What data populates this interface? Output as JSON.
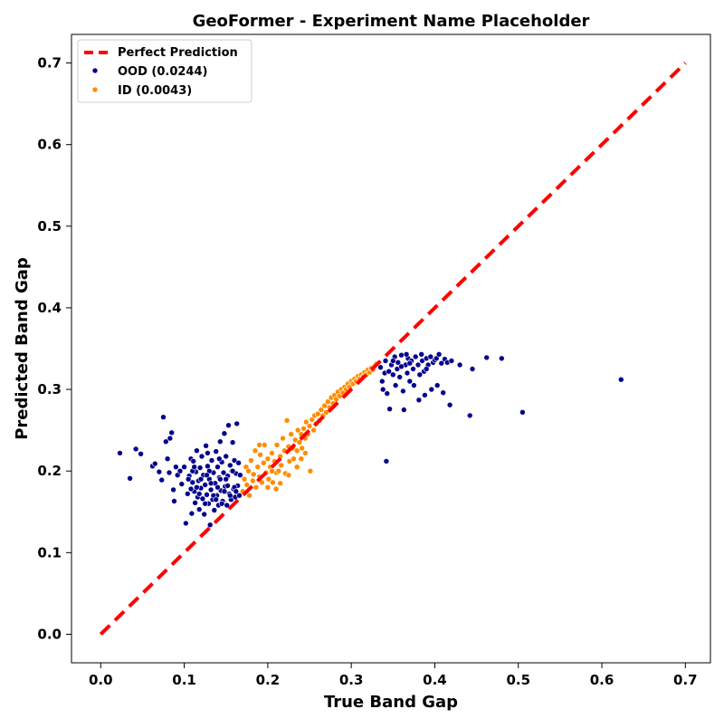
{
  "chart_data": {
    "type": "scatter",
    "title": "GeoFormer - Experiment Name Placeholder",
    "xlabel": "True Band Gap",
    "ylabel": "Predicted Band Gap",
    "xlim": [
      -0.035,
      0.73
    ],
    "ylim": [
      -0.035,
      0.735
    ],
    "xticks": [
      0.0,
      0.1,
      0.2,
      0.3,
      0.4,
      0.5,
      0.6,
      0.7
    ],
    "xtick_labels": [
      "0.0",
      "0.1",
      "0.2",
      "0.3",
      "0.4",
      "0.5",
      "0.6",
      "0.7"
    ],
    "yticks": [
      0.0,
      0.1,
      0.2,
      0.3,
      0.4,
      0.5,
      0.6,
      0.7
    ],
    "ytick_labels": [
      "0.0",
      "0.1",
      "0.2",
      "0.3",
      "0.4",
      "0.5",
      "0.6",
      "0.7"
    ],
    "grid": false,
    "legend_position": "top-left",
    "reference_line": {
      "name": "Perfect Prediction",
      "x": [
        0.0,
        0.7
      ],
      "y": [
        0.0,
        0.7
      ],
      "color": "#ff0000",
      "style": "dashed"
    },
    "series": [
      {
        "name": "OOD (0.0244)",
        "color": "#00008b",
        "points": [
          [
            0.023,
            0.222
          ],
          [
            0.035,
            0.191
          ],
          [
            0.042,
            0.227
          ],
          [
            0.048,
            0.221
          ],
          [
            0.062,
            0.206
          ],
          [
            0.065,
            0.209
          ],
          [
            0.07,
            0.199
          ],
          [
            0.073,
            0.189
          ],
          [
            0.075,
            0.266
          ],
          [
            0.078,
            0.236
          ],
          [
            0.08,
            0.215
          ],
          [
            0.082,
            0.198
          ],
          [
            0.083,
            0.24
          ],
          [
            0.085,
            0.247
          ],
          [
            0.087,
            0.177
          ],
          [
            0.088,
            0.163
          ],
          [
            0.09,
            0.205
          ],
          [
            0.092,
            0.195
          ],
          [
            0.095,
            0.2
          ],
          [
            0.097,
            0.184
          ],
          [
            0.1,
            0.205
          ],
          [
            0.102,
            0.136
          ],
          [
            0.104,
            0.172
          ],
          [
            0.106,
            0.194
          ],
          [
            0.108,
            0.215
          ],
          [
            0.109,
            0.148
          ],
          [
            0.11,
            0.186
          ],
          [
            0.111,
            0.212
          ],
          [
            0.112,
            0.175
          ],
          [
            0.113,
            0.161
          ],
          [
            0.114,
            0.199
          ],
          [
            0.115,
            0.225
          ],
          [
            0.116,
            0.168
          ],
          [
            0.117,
            0.188
          ],
          [
            0.118,
            0.153
          ],
          [
            0.119,
            0.204
          ],
          [
            0.12,
            0.179
          ],
          [
            0.121,
            0.218
          ],
          [
            0.122,
            0.166
          ],
          [
            0.123,
            0.195
          ],
          [
            0.124,
            0.147
          ],
          [
            0.125,
            0.183
          ],
          [
            0.126,
            0.231
          ],
          [
            0.127,
            0.171
          ],
          [
            0.128,
            0.206
          ],
          [
            0.129,
            0.16
          ],
          [
            0.13,
            0.19
          ],
          [
            0.131,
            0.134
          ],
          [
            0.132,
            0.177
          ],
          [
            0.133,
            0.213
          ],
          [
            0.134,
            0.165
          ],
          [
            0.135,
            0.198
          ],
          [
            0.136,
            0.152
          ],
          [
            0.137,
            0.185
          ],
          [
            0.138,
            0.224
          ],
          [
            0.139,
            0.17
          ],
          [
            0.14,
            0.205
          ],
          [
            0.141,
            0.158
          ],
          [
            0.142,
            0.192
          ],
          [
            0.143,
            0.236
          ],
          [
            0.144,
            0.176
          ],
          [
            0.145,
            0.211
          ],
          [
            0.146,
            0.163
          ],
          [
            0.147,
            0.198
          ],
          [
            0.148,
            0.246
          ],
          [
            0.149,
            0.181
          ],
          [
            0.15,
            0.218
          ],
          [
            0.151,
            0.158
          ],
          [
            0.152,
            0.194
          ],
          [
            0.153,
            0.256
          ],
          [
            0.154,
            0.172
          ],
          [
            0.155,
            0.207
          ],
          [
            0.156,
            0.165
          ],
          [
            0.157,
            0.2
          ],
          [
            0.158,
            0.235
          ],
          [
            0.159,
            0.178
          ],
          [
            0.16,
            0.213
          ],
          [
            0.161,
            0.168
          ],
          [
            0.162,
            0.197
          ],
          [
            0.163,
            0.258
          ],
          [
            0.164,
            0.182
          ],
          [
            0.165,
            0.21
          ],
          [
            0.166,
            0.17
          ],
          [
            0.167,
            0.195
          ],
          [
            0.11,
            0.2
          ],
          [
            0.12,
            0.19
          ],
          [
            0.13,
            0.2
          ],
          [
            0.14,
            0.18
          ],
          [
            0.15,
            0.19
          ],
          [
            0.16,
            0.18
          ],
          [
            0.125,
            0.16
          ],
          [
            0.135,
            0.17
          ],
          [
            0.145,
            0.16
          ],
          [
            0.155,
            0.17
          ],
          [
            0.115,
            0.18
          ],
          [
            0.105,
            0.19
          ],
          [
            0.112,
            0.205
          ],
          [
            0.128,
            0.222
          ],
          [
            0.142,
            0.215
          ],
          [
            0.158,
            0.2
          ],
          [
            0.132,
            0.185
          ],
          [
            0.148,
            0.175
          ],
          [
            0.118,
            0.172
          ],
          [
            0.138,
            0.165
          ],
          [
            0.152,
            0.182
          ],
          [
            0.162,
            0.175
          ],
          [
            0.108,
            0.178
          ],
          [
            0.127,
            0.195
          ],
          [
            0.143,
            0.19
          ],
          [
            0.335,
            0.327
          ],
          [
            0.337,
            0.31
          ],
          [
            0.338,
            0.3
          ],
          [
            0.34,
            0.32
          ],
          [
            0.341,
            0.335
          ],
          [
            0.342,
            0.212
          ],
          [
            0.343,
            0.295
          ],
          [
            0.345,
            0.322
          ],
          [
            0.346,
            0.276
          ],
          [
            0.348,
            0.33
          ],
          [
            0.35,
            0.318
          ],
          [
            0.352,
            0.34
          ],
          [
            0.353,
            0.305
          ],
          [
            0.355,
            0.325
          ],
          [
            0.356,
            0.333
          ],
          [
            0.358,
            0.315
          ],
          [
            0.36,
            0.342
          ],
          [
            0.362,
            0.298
          ],
          [
            0.363,
            0.275
          ],
          [
            0.365,
            0.33
          ],
          [
            0.367,
            0.32
          ],
          [
            0.368,
            0.338
          ],
          [
            0.37,
            0.31
          ],
          [
            0.372,
            0.335
          ],
          [
            0.374,
            0.325
          ],
          [
            0.375,
            0.305
          ],
          [
            0.377,
            0.34
          ],
          [
            0.38,
            0.33
          ],
          [
            0.381,
            0.287
          ],
          [
            0.382,
            0.318
          ],
          [
            0.385,
            0.335
          ],
          [
            0.387,
            0.322
          ],
          [
            0.388,
            0.293
          ],
          [
            0.39,
            0.338
          ],
          [
            0.392,
            0.33
          ],
          [
            0.395,
            0.34
          ],
          [
            0.396,
            0.3
          ],
          [
            0.398,
            0.333
          ],
          [
            0.4,
            0.336
          ],
          [
            0.402,
            0.338
          ],
          [
            0.403,
            0.305
          ],
          [
            0.405,
            0.343
          ],
          [
            0.408,
            0.332
          ],
          [
            0.41,
            0.296
          ],
          [
            0.412,
            0.337
          ],
          [
            0.415,
            0.333
          ],
          [
            0.418,
            0.281
          ],
          [
            0.42,
            0.335
          ],
          [
            0.43,
            0.33
          ],
          [
            0.442,
            0.268
          ],
          [
            0.445,
            0.325
          ],
          [
            0.462,
            0.339
          ],
          [
            0.48,
            0.338
          ],
          [
            0.505,
            0.272
          ],
          [
            0.623,
            0.312
          ],
          [
            0.36,
            0.328
          ],
          [
            0.37,
            0.332
          ],
          [
            0.39,
            0.325
          ],
          [
            0.35,
            0.335
          ],
          [
            0.366,
            0.343
          ],
          [
            0.384,
            0.343
          ]
        ]
      },
      {
        "name": "ID (0.0043)",
        "color": "#ff8c00",
        "points": [
          [
            0.17,
            0.175
          ],
          [
            0.172,
            0.19
          ],
          [
            0.174,
            0.205
          ],
          [
            0.175,
            0.183
          ],
          [
            0.177,
            0.2
          ],
          [
            0.178,
            0.17
          ],
          [
            0.18,
            0.213
          ],
          [
            0.182,
            0.188
          ],
          [
            0.183,
            0.196
          ],
          [
            0.185,
            0.225
          ],
          [
            0.186,
            0.18
          ],
          [
            0.188,
            0.205
          ],
          [
            0.19,
            0.193
          ],
          [
            0.191,
            0.22
          ],
          [
            0.193,
            0.186
          ],
          [
            0.195,
            0.21
          ],
          [
            0.196,
            0.232
          ],
          [
            0.198,
            0.198
          ],
          [
            0.2,
            0.215
          ],
          [
            0.201,
            0.19
          ],
          [
            0.203,
            0.205
          ],
          [
            0.205,
            0.222
          ],
          [
            0.206,
            0.186
          ],
          [
            0.208,
            0.212
          ],
          [
            0.21,
            0.198
          ],
          [
            0.211,
            0.232
          ],
          [
            0.213,
            0.2
          ],
          [
            0.215,
            0.218
          ],
          [
            0.216,
            0.207
          ],
          [
            0.218,
            0.24
          ],
          [
            0.22,
            0.225
          ],
          [
            0.221,
            0.197
          ],
          [
            0.223,
            0.262
          ],
          [
            0.225,
            0.23
          ],
          [
            0.226,
            0.212
          ],
          [
            0.228,
            0.245
          ],
          [
            0.23,
            0.228
          ],
          [
            0.231,
            0.215
          ],
          [
            0.233,
            0.238
          ],
          [
            0.235,
            0.225
          ],
          [
            0.236,
            0.25
          ],
          [
            0.238,
            0.235
          ],
          [
            0.24,
            0.245
          ],
          [
            0.241,
            0.228
          ],
          [
            0.243,
            0.252
          ],
          [
            0.245,
            0.24
          ],
          [
            0.246,
            0.26
          ],
          [
            0.248,
            0.245
          ],
          [
            0.25,
            0.255
          ],
          [
            0.251,
            0.2
          ],
          [
            0.253,
            0.263
          ],
          [
            0.255,
            0.25
          ],
          [
            0.256,
            0.268
          ],
          [
            0.258,
            0.258
          ],
          [
            0.26,
            0.27
          ],
          [
            0.262,
            0.262
          ],
          [
            0.264,
            0.275
          ],
          [
            0.266,
            0.268
          ],
          [
            0.268,
            0.28
          ],
          [
            0.27,
            0.272
          ],
          [
            0.272,
            0.285
          ],
          [
            0.274,
            0.278
          ],
          [
            0.276,
            0.29
          ],
          [
            0.278,
            0.283
          ],
          [
            0.28,
            0.293
          ],
          [
            0.282,
            0.288
          ],
          [
            0.284,
            0.297
          ],
          [
            0.286,
            0.292
          ],
          [
            0.288,
            0.3
          ],
          [
            0.29,
            0.296
          ],
          [
            0.292,
            0.303
          ],
          [
            0.294,
            0.3
          ],
          [
            0.296,
            0.307
          ],
          [
            0.298,
            0.303
          ],
          [
            0.3,
            0.31
          ],
          [
            0.302,
            0.307
          ],
          [
            0.304,
            0.313
          ],
          [
            0.306,
            0.31
          ],
          [
            0.308,
            0.316
          ],
          [
            0.31,
            0.313
          ],
          [
            0.312,
            0.318
          ],
          [
            0.314,
            0.315
          ],
          [
            0.316,
            0.321
          ],
          [
            0.318,
            0.318
          ],
          [
            0.32,
            0.324
          ],
          [
            0.322,
            0.321
          ],
          [
            0.324,
            0.326
          ],
          [
            0.326,
            0.324
          ],
          [
            0.328,
            0.329
          ],
          [
            0.33,
            0.331
          ],
          [
            0.215,
            0.185
          ],
          [
            0.2,
            0.18
          ],
          [
            0.225,
            0.195
          ],
          [
            0.24,
            0.215
          ],
          [
            0.19,
            0.232
          ],
          [
            0.205,
            0.2
          ],
          [
            0.235,
            0.205
          ],
          [
            0.245,
            0.222
          ],
          [
            0.21,
            0.178
          ]
        ]
      }
    ]
  }
}
